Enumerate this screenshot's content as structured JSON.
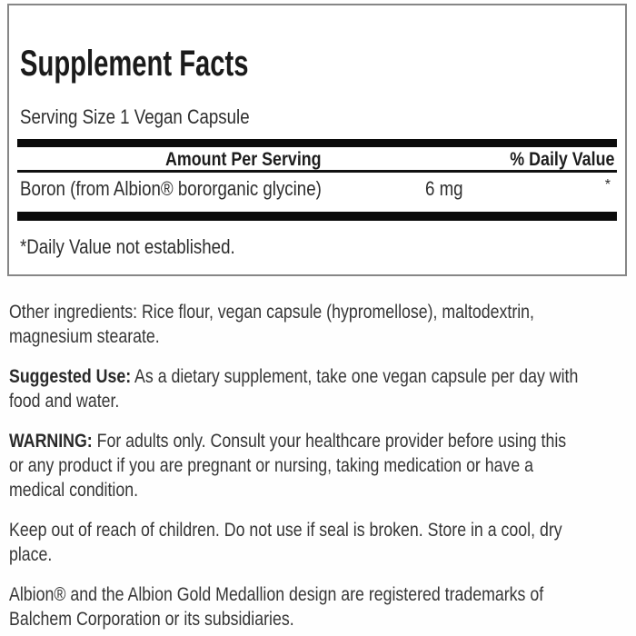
{
  "panel": {
    "title": "Supplement Facts",
    "serving_size": "Serving Size 1 Vegan Capsule",
    "columns": {
      "amount": "Amount Per Serving",
      "daily_value": "% Daily Value"
    },
    "rows": [
      {
        "name": "Boron (from Albion® bororganic glycine)",
        "amount": "6 mg",
        "daily_value": "*"
      }
    ],
    "footnote": "*Daily Value not established."
  },
  "paragraphs": [
    {
      "text": "Other ingredients: Rice flour, vegan capsule (hypromellose), maltodextrin,\nmagnesium stearate."
    },
    {
      "label": "Suggested Use:",
      "text": " As a dietary supplement, take one vegan capsule per day with\nfood and water."
    },
    {
      "label": "WARNING:",
      "text": " For adults only. Consult your healthcare provider before using this\nor any product if you are pregnant or nursing, taking medication or have a\nmedical condition."
    },
    {
      "text": "Keep out of reach of children. Do not use if seal is broken. Store in a cool, dry\nplace."
    },
    {
      "text": "Albion® and the Albion Gold Medallion design are registered trademarks of\nBalchem Corporation or its subsidiaries."
    }
  ],
  "colors": {
    "bar": "#0b0b0b",
    "border": "#868686",
    "text": "#333333"
  }
}
